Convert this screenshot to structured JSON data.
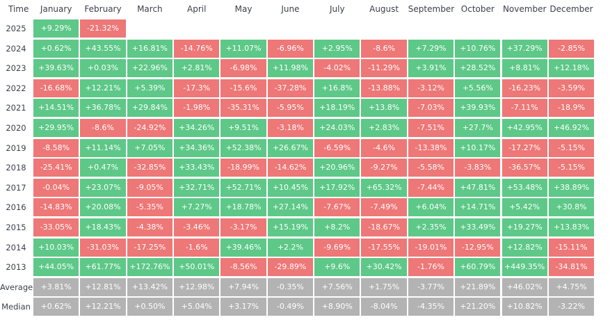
{
  "header": {
    "time_label": "Time",
    "months": [
      "January",
      "February",
      "March",
      "April",
      "May",
      "June",
      "July",
      "August",
      "September",
      "October",
      "November",
      "December"
    ]
  },
  "colors": {
    "positive": "#5dc887",
    "negative": "#ee7777",
    "summary": "#b3b3b3",
    "text": "#3a3f48"
  },
  "rows": [
    {
      "label": "2025",
      "values": [
        "+9.29%",
        "-21.32%",
        "",
        "",
        "",
        "",
        "",
        "",
        "",
        "",
        "",
        ""
      ]
    },
    {
      "label": "2024",
      "values": [
        "+0.62%",
        "+43.55%",
        "+16.81%",
        "-14.76%",
        "+11.07%",
        "-6.96%",
        "+2.95%",
        "-8.6%",
        "+7.29%",
        "+10.76%",
        "+37.29%",
        "-2.85%"
      ]
    },
    {
      "label": "2023",
      "values": [
        "+39.63%",
        "+0.03%",
        "+22.96%",
        "+2.81%",
        "-6.98%",
        "+11.98%",
        "-4.02%",
        "-11.29%",
        "+3.91%",
        "+28.52%",
        "+8.81%",
        "+12.18%"
      ]
    },
    {
      "label": "2022",
      "values": [
        "-16.68%",
        "+12.21%",
        "+5.39%",
        "-17.3%",
        "-15.6%",
        "-37.28%",
        "+16.8%",
        "-13.88%",
        "-3.12%",
        "+5.56%",
        "-16.23%",
        "-3.59%"
      ]
    },
    {
      "label": "2021",
      "values": [
        "+14.51%",
        "+36.78%",
        "+29.84%",
        "-1.98%",
        "-35.31%",
        "-5.95%",
        "+18.19%",
        "+13.8%",
        "-7.03%",
        "+39.93%",
        "-7.11%",
        "-18.9%"
      ]
    },
    {
      "label": "2020",
      "values": [
        "+29.95%",
        "-8.6%",
        "-24.92%",
        "+34.26%",
        "+9.51%",
        "-3.18%",
        "+24.03%",
        "+2.83%",
        "-7.51%",
        "+27.7%",
        "+42.95%",
        "+46.92%"
      ]
    },
    {
      "label": "2019",
      "values": [
        "-8.58%",
        "+11.14%",
        "+7.05%",
        "+34.36%",
        "+52.38%",
        "+26.67%",
        "-6.59%",
        "-4.6%",
        "-13.38%",
        "+10.17%",
        "-17.27%",
        "-5.15%"
      ]
    },
    {
      "label": "2018",
      "values": [
        "-25.41%",
        "+0.47%",
        "-32.85%",
        "+33.43%",
        "-18.99%",
        "-14.62%",
        "+20.96%",
        "-9.27%",
        "-5.58%",
        "-3.83%",
        "-36.57%",
        "-5.15%"
      ]
    },
    {
      "label": "2017",
      "values": [
        "-0.04%",
        "+23.07%",
        "-9.05%",
        "+32.71%",
        "+52.71%",
        "+10.45%",
        "+17.92%",
        "+65.32%",
        "-7.44%",
        "+47.81%",
        "+53.48%",
        "+38.89%"
      ]
    },
    {
      "label": "2016",
      "values": [
        "-14.83%",
        "+20.08%",
        "-5.35%",
        "+7.27%",
        "+18.78%",
        "+27.14%",
        "-7.67%",
        "-7.49%",
        "+6.04%",
        "+14.71%",
        "+5.42%",
        "+30.8%"
      ]
    },
    {
      "label": "2015",
      "values": [
        "-33.05%",
        "+18.43%",
        "-4.38%",
        "-3.46%",
        "-3.17%",
        "+15.19%",
        "+8.2%",
        "-18.67%",
        "+2.35%",
        "+33.49%",
        "+19.27%",
        "+13.83%"
      ]
    },
    {
      "label": "2014",
      "values": [
        "+10.03%",
        "-31.03%",
        "-17.25%",
        "-1.6%",
        "+39.46%",
        "+2.2%",
        "-9.69%",
        "-17.55%",
        "-19.01%",
        "-12.95%",
        "+12.82%",
        "-15.11%"
      ]
    },
    {
      "label": "2013",
      "values": [
        "+44.05%",
        "+61.77%",
        "+172.76%",
        "+50.01%",
        "-8.56%",
        "-29.89%",
        "+9.6%",
        "+30.42%",
        "-1.76%",
        "+60.79%",
        "+449.35%",
        "-34.81%"
      ]
    }
  ],
  "summary": [
    {
      "label": "Average",
      "values": [
        "+3.81%",
        "+12.81%",
        "+13.42%",
        "+12.98%",
        "+7.94%",
        "-0.35%",
        "+7.56%",
        "+1.75%",
        "-3.77%",
        "+21.89%",
        "+46.02%",
        "+4.75%"
      ]
    },
    {
      "label": "Median",
      "values": [
        "+0.62%",
        "+12.21%",
        "+0.50%",
        "+5.04%",
        "+3.17%",
        "-0.49%",
        "+8.90%",
        "-8.04%",
        "-4.35%",
        "+21.20%",
        "+10.82%",
        "-3.22%"
      ]
    }
  ]
}
